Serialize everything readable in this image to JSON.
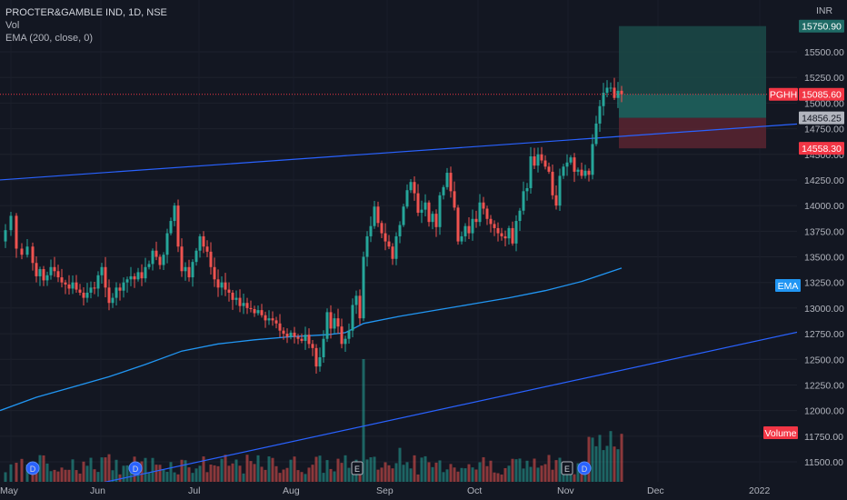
{
  "legend": {
    "symbol": "PROCTER&GAMBLE IND, 1D, NSE",
    "vol": "Vol",
    "ema": "EMA (200, close, 0)"
  },
  "axis": {
    "currency": "INR"
  },
  "colors": {
    "background": "#131722",
    "up": "#26a69a",
    "down": "#ef5350",
    "trendline": "#2962ff",
    "ema": "#2196f3",
    "price_tag": "#f23645",
    "target_zone": "#1b4a48",
    "stop_zone": "#5b2430"
  },
  "price_labels": {
    "target": "15750.90",
    "symbol_tag": "PGHH",
    "last": "15085.60",
    "entry": "14856.25",
    "stop": "14558.30",
    "ema_tag": "EMA",
    "volume_tag": "Volume"
  },
  "chart_data": {
    "type": "candlestick",
    "ylim": [
      11350,
      15900
    ],
    "y_ticks": [
      "15500.00",
      "15250.00",
      "15000.00",
      "14750.00",
      "14500.00",
      "14250.00",
      "14000.00",
      "13750.00",
      "13500.00",
      "13250.00",
      "13000.00",
      "12750.00",
      "12500.00",
      "12250.00",
      "12000.00",
      "11750.00",
      "11500.00"
    ],
    "x_labels": [
      "May",
      "Jun",
      "Jul",
      "Aug",
      "Sep",
      "Oct",
      "Nov",
      "Dec",
      "2022"
    ],
    "event_markers": [
      {
        "label": "D",
        "date": "early May"
      },
      {
        "label": "D",
        "date": "early Jun"
      },
      {
        "label": "E",
        "date": "late Aug"
      },
      {
        "label": "E",
        "date": "early Nov"
      },
      {
        "label": "D",
        "date": "early Nov"
      }
    ],
    "key_prices": {
      "last": 15085.6,
      "target": 15750.9,
      "entry": 14856.25,
      "stop": 14558.3
    },
    "close_path": [
      [
        0,
        13650
      ],
      [
        6,
        13760
      ],
      [
        12,
        13900
      ],
      [
        18,
        13580
      ],
      [
        24,
        13520
      ],
      [
        30,
        13600
      ],
      [
        36,
        13440
      ],
      [
        40,
        13310
      ],
      [
        44,
        13380
      ],
      [
        48,
        13270
      ],
      [
        52,
        13320
      ],
      [
        56,
        13400
      ],
      [
        60,
        13360
      ],
      [
        64,
        13300
      ],
      [
        68,
        13250
      ],
      [
        72,
        13230
      ],
      [
        76,
        13190
      ],
      [
        80,
        13250
      ],
      [
        84,
        13180
      ],
      [
        88,
        13150
      ],
      [
        92,
        13100
      ],
      [
        96,
        13150
      ],
      [
        100,
        13200
      ],
      [
        104,
        13190
      ],
      [
        108,
        13320
      ],
      [
        112,
        13400
      ],
      [
        116,
        13200
      ],
      [
        120,
        13050
      ],
      [
        124,
        13100
      ],
      [
        128,
        13200
      ],
      [
        132,
        13170
      ],
      [
        136,
        13250
      ],
      [
        140,
        13280
      ],
      [
        144,
        13310
      ],
      [
        148,
        13280
      ],
      [
        152,
        13350
      ],
      [
        156,
        13290
      ],
      [
        160,
        13400
      ],
      [
        164,
        13430
      ],
      [
        168,
        13560
      ],
      [
        172,
        13500
      ],
      [
        176,
        13420
      ],
      [
        180,
        13520
      ],
      [
        184,
        13730
      ],
      [
        188,
        13850
      ],
      [
        192,
        14000
      ],
      [
        196,
        13600
      ],
      [
        200,
        13360
      ],
      [
        204,
        13400
      ],
      [
        208,
        13300
      ],
      [
        212,
        13450
      ],
      [
        216,
        13560
      ],
      [
        220,
        13700
      ],
      [
        224,
        13600
      ],
      [
        228,
        13550
      ],
      [
        232,
        13400
      ],
      [
        236,
        13280
      ],
      [
        240,
        13200
      ],
      [
        244,
        13250
      ],
      [
        248,
        13180
      ],
      [
        252,
        13150
      ],
      [
        256,
        13080
      ],
      [
        260,
        13100
      ],
      [
        264,
        13020
      ],
      [
        268,
        13050
      ],
      [
        272,
        13000
      ],
      [
        276,
        12990
      ],
      [
        280,
        12950
      ],
      [
        284,
        12980
      ],
      [
        288,
        12930
      ],
      [
        292,
        12880
      ],
      [
        296,
        12900
      ],
      [
        300,
        12880
      ],
      [
        304,
        12850
      ],
      [
        308,
        12780
      ],
      [
        312,
        12750
      ],
      [
        316,
        12720
      ],
      [
        320,
        12760
      ],
      [
        324,
        12720
      ],
      [
        328,
        12700
      ],
      [
        332,
        12680
      ],
      [
        336,
        12740
      ],
      [
        340,
        12650
      ],
      [
        344,
        12610
      ],
      [
        348,
        12430
      ],
      [
        352,
        12520
      ],
      [
        356,
        12700
      ],
      [
        360,
        12960
      ],
      [
        364,
        12800
      ],
      [
        368,
        12900
      ],
      [
        372,
        12820
      ],
      [
        376,
        12650
      ],
      [
        380,
        12700
      ],
      [
        384,
        12780
      ],
      [
        388,
        13030
      ],
      [
        392,
        13120
      ],
      [
        396,
        12900
      ],
      [
        400,
        13500
      ],
      [
        404,
        13700
      ],
      [
        408,
        13800
      ],
      [
        412,
        13990
      ],
      [
        416,
        13830
      ],
      [
        420,
        13730
      ],
      [
        424,
        13650
      ],
      [
        428,
        13600
      ],
      [
        432,
        13480
      ],
      [
        436,
        13700
      ],
      [
        440,
        13810
      ],
      [
        444,
        13990
      ],
      [
        448,
        14150
      ],
      [
        452,
        14230
      ],
      [
        456,
        14120
      ],
      [
        460,
        13930
      ],
      [
        464,
        13960
      ],
      [
        468,
        14030
      ],
      [
        472,
        13840
      ],
      [
        476,
        13920
      ],
      [
        480,
        13790
      ],
      [
        484,
        14100
      ],
      [
        488,
        14180
      ],
      [
        492,
        14320
      ],
      [
        496,
        14140
      ],
      [
        500,
        13980
      ],
      [
        504,
        13650
      ],
      [
        508,
        13700
      ],
      [
        512,
        13800
      ],
      [
        516,
        13730
      ],
      [
        520,
        13870
      ],
      [
        524,
        13840
      ],
      [
        528,
        14030
      ],
      [
        532,
        13970
      ],
      [
        536,
        13870
      ],
      [
        540,
        13820
      ],
      [
        544,
        13780
      ],
      [
        548,
        13730
      ],
      [
        552,
        13700
      ],
      [
        556,
        13680
      ],
      [
        560,
        13780
      ],
      [
        564,
        13630
      ],
      [
        568,
        13850
      ],
      [
        572,
        13950
      ],
      [
        576,
        14140
      ],
      [
        580,
        14170
      ],
      [
        584,
        14480
      ],
      [
        588,
        14390
      ],
      [
        592,
        14500
      ],
      [
        596,
        14440
      ],
      [
        600,
        14380
      ],
      [
        604,
        14330
      ],
      [
        608,
        14100
      ],
      [
        612,
        14000
      ],
      [
        616,
        14290
      ],
      [
        620,
        14380
      ],
      [
        624,
        14420
      ],
      [
        628,
        14470
      ],
      [
        632,
        14330
      ],
      [
        636,
        14350
      ],
      [
        640,
        14290
      ],
      [
        644,
        14340
      ],
      [
        648,
        14300
      ],
      [
        652,
        14600
      ],
      [
        656,
        14800
      ],
      [
        660,
        14970
      ],
      [
        664,
        15100
      ],
      [
        668,
        15150
      ],
      [
        672,
        15150
      ],
      [
        676,
        15050
      ],
      [
        680,
        15120
      ],
      [
        684,
        15085
      ]
    ],
    "ema_200": [
      [
        0,
        12000
      ],
      [
        40,
        12130
      ],
      [
        80,
        12230
      ],
      [
        120,
        12330
      ],
      [
        160,
        12450
      ],
      [
        200,
        12580
      ],
      [
        240,
        12650
      ],
      [
        280,
        12690
      ],
      [
        320,
        12720
      ],
      [
        360,
        12740
      ],
      [
        380,
        12760
      ],
      [
        400,
        12850
      ],
      [
        440,
        12920
      ],
      [
        480,
        12980
      ],
      [
        520,
        13040
      ],
      [
        560,
        13100
      ],
      [
        600,
        13170
      ],
      [
        640,
        13260
      ],
      [
        684,
        13390
      ]
    ],
    "trendline_upper": [
      [
        0,
        14250
      ],
      [
        932,
        14830
      ]
    ],
    "trendline_lower": [
      [
        0,
        11080
      ],
      [
        932,
        12870
      ]
    ],
    "volume_note": "spikes in late Aug and mid-Nov"
  }
}
